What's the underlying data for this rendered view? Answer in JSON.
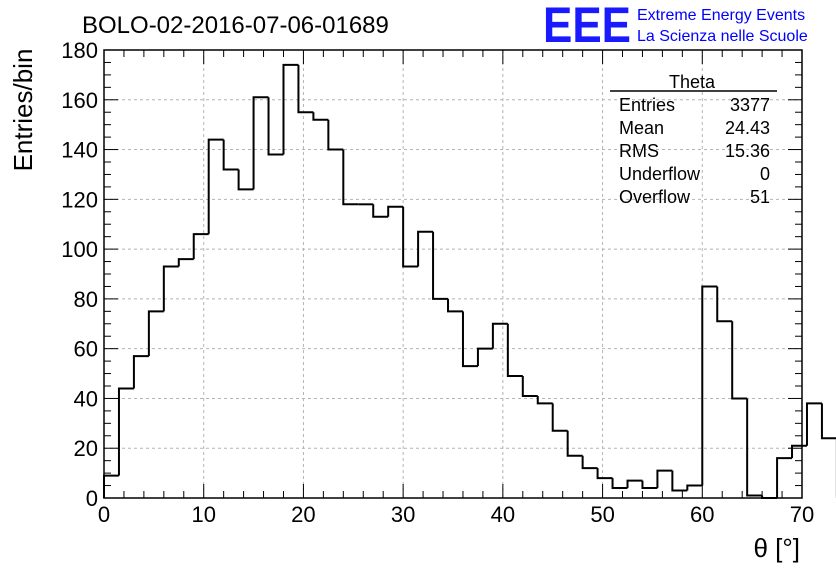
{
  "header": {
    "title": "BOLO-02-2016-07-06-01689",
    "logo": {
      "mark": "EEE",
      "line1": "Extreme Energy Events",
      "line2": "La Scienza nelle Scuole",
      "color": "#0000ff"
    }
  },
  "stats_box": {
    "name": "Theta",
    "rows": [
      {
        "label": "Entries",
        "value": "3377"
      },
      {
        "label": "Mean",
        "value": "24.43"
      },
      {
        "label": "RMS",
        "value": "15.36"
      },
      {
        "label": "Underflow",
        "value": "0"
      },
      {
        "label": "Overflow",
        "value": "51"
      }
    ]
  },
  "chart_data": {
    "type": "bar",
    "style": "step-histogram",
    "title": "BOLO-02-2016-07-06-01689",
    "xlabel": "θ [°]",
    "ylabel": "Entries/bin",
    "xlim": [
      0,
      70
    ],
    "ylim": [
      0,
      180
    ],
    "grid": true,
    "bin_width": 1.5,
    "x_ticks": [
      0,
      10,
      20,
      30,
      40,
      50,
      60,
      70
    ],
    "y_ticks": [
      0,
      20,
      40,
      60,
      80,
      100,
      120,
      140,
      160,
      180
    ],
    "values": [
      9,
      44,
      57,
      75,
      93,
      96,
      106,
      144,
      132,
      124,
      161,
      138,
      174,
      155,
      152,
      140,
      118,
      118,
      113,
      117,
      93,
      107,
      80,
      75,
      53,
      60,
      70,
      49,
      41,
      38,
      27,
      17,
      12,
      8,
      4,
      7,
      4,
      11,
      3,
      5,
      85,
      71,
      40,
      1,
      0,
      16,
      21,
      38,
      24
    ]
  }
}
